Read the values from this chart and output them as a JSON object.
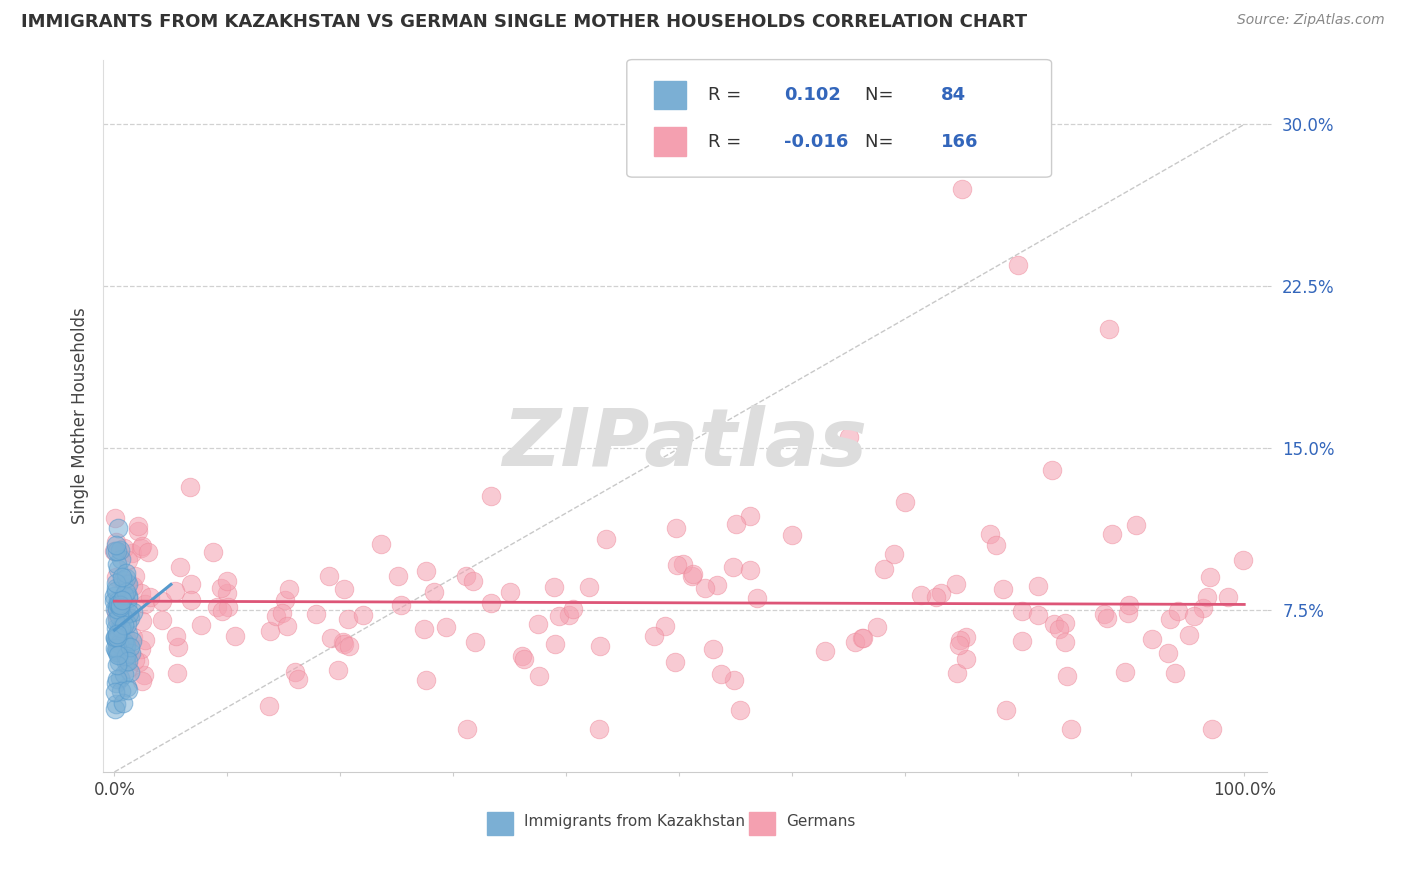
{
  "title": "IMMIGRANTS FROM KAZAKHSTAN VS GERMAN SINGLE MOTHER HOUSEHOLDS CORRELATION CHART",
  "source": "Source: ZipAtlas.com",
  "ylabel": "Single Mother Households",
  "watermark": "ZIPatlas",
  "legend_bottom": [
    "Immigrants from Kazakhstan",
    "Germans"
  ],
  "blue_R": 0.102,
  "blue_N": 84,
  "pink_R": -0.016,
  "pink_N": 166,
  "xlim": [
    -1.0,
    102.0
  ],
  "ylim": [
    0.0,
    33.0
  ],
  "yticks": [
    7.5,
    15.0,
    22.5,
    30.0
  ],
  "xticks": [
    0,
    10,
    20,
    30,
    40,
    50,
    60,
    70,
    80,
    90,
    100
  ],
  "xticklabels_show": [
    "0.0%",
    "100.0%"
  ],
  "yticklabels": [
    "7.5%",
    "15.0%",
    "22.5%",
    "30.0%"
  ],
  "blue_color": "#7bafd4",
  "blue_edge_color": "#5599cc",
  "pink_color": "#f4a0b0",
  "pink_edge_color": "#ee8899",
  "blue_line_color": "#5599cc",
  "pink_line_color": "#dd5577",
  "diag_line_color": "#bbbbbb",
  "grid_color": "#cccccc",
  "background_color": "#ffffff",
  "text_color_blue": "#3366bb",
  "text_color_dark": "#444444",
  "text_color_source": "#888888"
}
